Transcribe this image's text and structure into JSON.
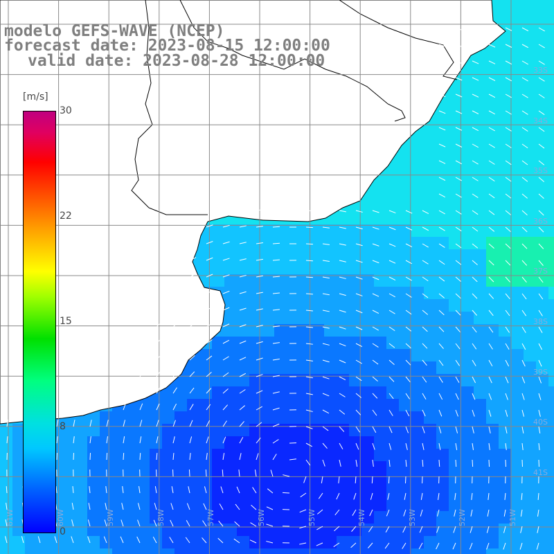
{
  "title": {
    "line1": "modelo GEFS-WAVE (NCEP)",
    "line2": "forecast date: 2023-08-15 12:00:00",
    "line3": "valid date: 2023-08-28 12:00:00"
  },
  "colorbar": {
    "unit": "[m/s]",
    "labels": [
      "30",
      "22",
      "15",
      "8",
      "0"
    ],
    "colors": [
      "#0000ff",
      "#00c8ff",
      "#00ff80",
      "#ffff00",
      "#ff0000",
      "#c00080"
    ]
  },
  "lat_labels": [
    "33S",
    "34S",
    "35S",
    "36S",
    "37S",
    "38S",
    "39S",
    "40S",
    "41S"
  ],
  "lon_labels": [
    "61W",
    "60W",
    "59W",
    "58W",
    "57W",
    "56W",
    "55W",
    "54W",
    "53W",
    "52W",
    "51W"
  ],
  "land_color": "#ffffff",
  "coast_color": "#000000",
  "grid_color": "#888888"
}
